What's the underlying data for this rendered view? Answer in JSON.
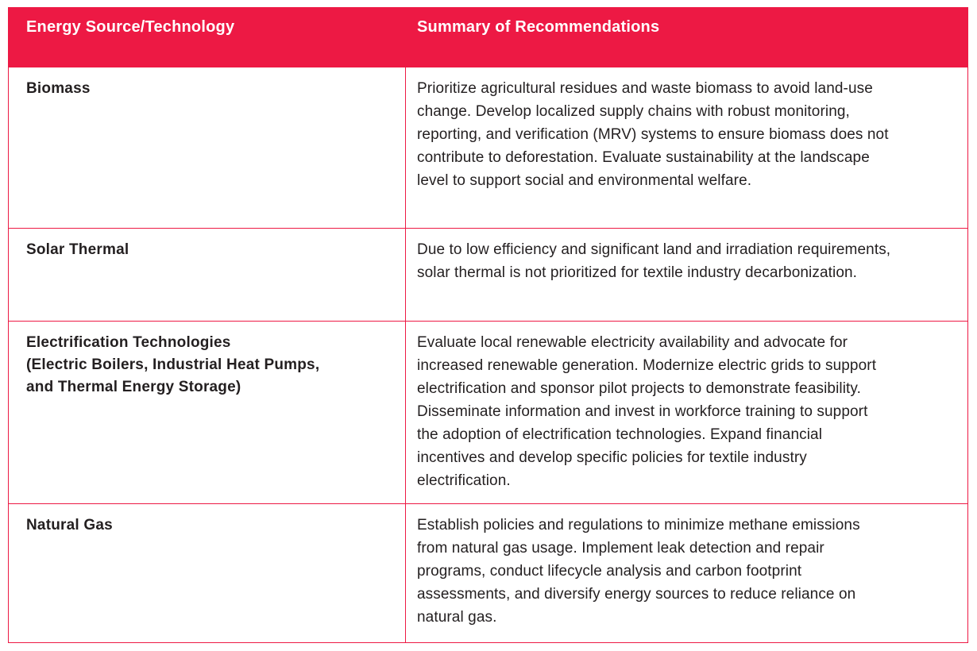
{
  "colors": {
    "accent": "#ED1944",
    "header_text": "#FFFFFF",
    "body_text": "#231F20"
  },
  "table": {
    "headers": [
      {
        "label": "Energy Source/Technology"
      },
      {
        "label": "Summary of Recommendations"
      }
    ],
    "rows": [
      {
        "source": "Biomass",
        "summary": "Prioritize agricultural residues and waste biomass to avoid land-use change. Develop localized supply chains with robust monitoring, reporting, and verification (MRV) systems to ensure biomass does not contribute to deforestation. Evaluate sustainability at the landscape level to support social and environmental welfare."
      },
      {
        "source": "Solar Thermal",
        "summary": "Due to low efficiency and significant land and irradiation requirements, solar thermal is not prioritized for textile industry decarbonization."
      },
      {
        "source": "Electrification Technologies\n(Electric Boilers, Industrial Heat Pumps,\nand Thermal Energy Storage)",
        "summary": "Evaluate local renewable electricity availability and advocate for increased renewable generation. Modernize electric grids to support electrification and sponsor pilot projects to demonstrate feasibility. Disseminate information and invest in workforce training to support the adoption of electrification technologies. Expand financial incentives and develop specific policies for textile industry electrification."
      },
      {
        "source": "Natural Gas",
        "summary": "Establish policies and regulations to minimize methane emissions from natural gas usage. Implement leak detection and repair programs, conduct lifecycle analysis and carbon footprint assessments, and diversify energy sources to reduce reliance on natural gas."
      }
    ]
  }
}
